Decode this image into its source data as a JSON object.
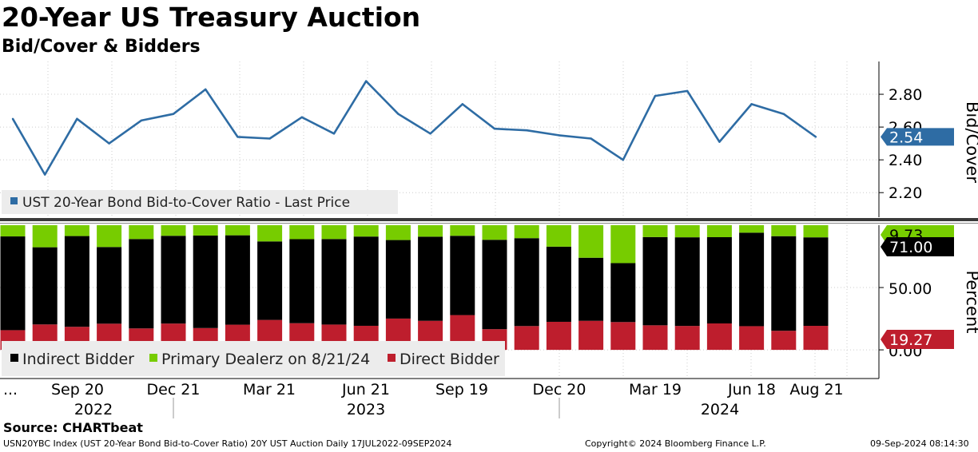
{
  "header": {
    "title": "20-Year US Treasury Auction",
    "subtitle": "Bid/Cover & Bidders"
  },
  "chart_data": [
    {
      "type": "line",
      "ylabel": "Bid/Cover",
      "ylim": [
        2.05,
        3.0
      ],
      "yticks": [
        "2.20",
        "2.40",
        "2.60",
        "2.80"
      ],
      "legend": "UST 20-Year Bond Bid-to-Cover Ratio - Last Price",
      "last_value_label": "2.54",
      "color": "#2e6ca4",
      "series": [
        {
          "name": "UST 20-Year Bond Bid-to-Cover Ratio - Last Price",
          "values": [
            2.65,
            2.31,
            2.65,
            2.5,
            2.64,
            2.68,
            2.83,
            2.54,
            2.53,
            2.66,
            2.56,
            2.88,
            2.68,
            2.56,
            2.74,
            2.59,
            2.58,
            2.55,
            2.53,
            2.4,
            2.79,
            2.82,
            2.51,
            2.74,
            2.68,
            2.54
          ]
        }
      ]
    },
    {
      "type": "bar",
      "stacked": true,
      "ylabel": "Percent",
      "ylim": [
        -23,
        100
      ],
      "yticks": [
        "0.00",
        "50.00"
      ],
      "legend": [
        "Indirect Bidder",
        "Primary Dealerz on 8/21/24",
        "Direct Bidder"
      ],
      "last_value_labels": {
        "primary": "9.73",
        "indirect": "71.00",
        "direct": "19.27"
      },
      "series": [
        {
          "name": "Direct Bidder",
          "color": "#be1e2d",
          "values": [
            15.8,
            20.4,
            18.5,
            21.0,
            17.2,
            21.1,
            17.5,
            20.2,
            24.0,
            21.4,
            20.3,
            19.3,
            25.1,
            23.3,
            27.9,
            16.6,
            19.1,
            22.5,
            23.3,
            22.3,
            19.7,
            19.2,
            21.2,
            19.0,
            15.3,
            19.27
          ]
        },
        {
          "name": "Indirect Bidder",
          "color": "#000000",
          "values": [
            75.2,
            61.9,
            72.8,
            61.5,
            71.7,
            70.4,
            74.2,
            71.7,
            63.0,
            67.4,
            68.6,
            71.6,
            63.0,
            67.5,
            63.6,
            71.7,
            70.5,
            60.3,
            50.6,
            47.3,
            70.8,
            71.1,
            69.2,
            75.0,
            75.9,
            71.0
          ]
        },
        {
          "name": "Primary Dealerz on 8/21/24",
          "color": "#77cc00",
          "values": [
            9.0,
            17.7,
            8.7,
            17.5,
            11.1,
            8.5,
            8.3,
            8.1,
            13.0,
            11.2,
            11.1,
            9.1,
            11.9,
            9.2,
            8.5,
            11.7,
            10.4,
            17.2,
            26.1,
            30.4,
            9.5,
            9.7,
            9.6,
            6.0,
            8.8,
            9.73
          ]
        }
      ]
    }
  ],
  "xaxis": {
    "ticks": [
      "...",
      "Sep 20",
      "Dec 21",
      "Mar 21",
      "Jun 21",
      "Sep 19",
      "Dec 20",
      "Mar 19",
      "Jun 18",
      "Aug 21"
    ],
    "years": [
      "2022",
      "2023",
      "2024"
    ]
  },
  "footer": {
    "source": "Source: CHARTbeat",
    "index_desc": "USN20YBC Index (UST 20-Year Bond Bid-to-Cover Ratio) 20Y UST Auction  Daily 17JUL2022-09SEP2024",
    "copyright": "Copyright© 2024 Bloomberg Finance L.P.",
    "timestamp": "09-Sep-2024 08:14:30"
  }
}
